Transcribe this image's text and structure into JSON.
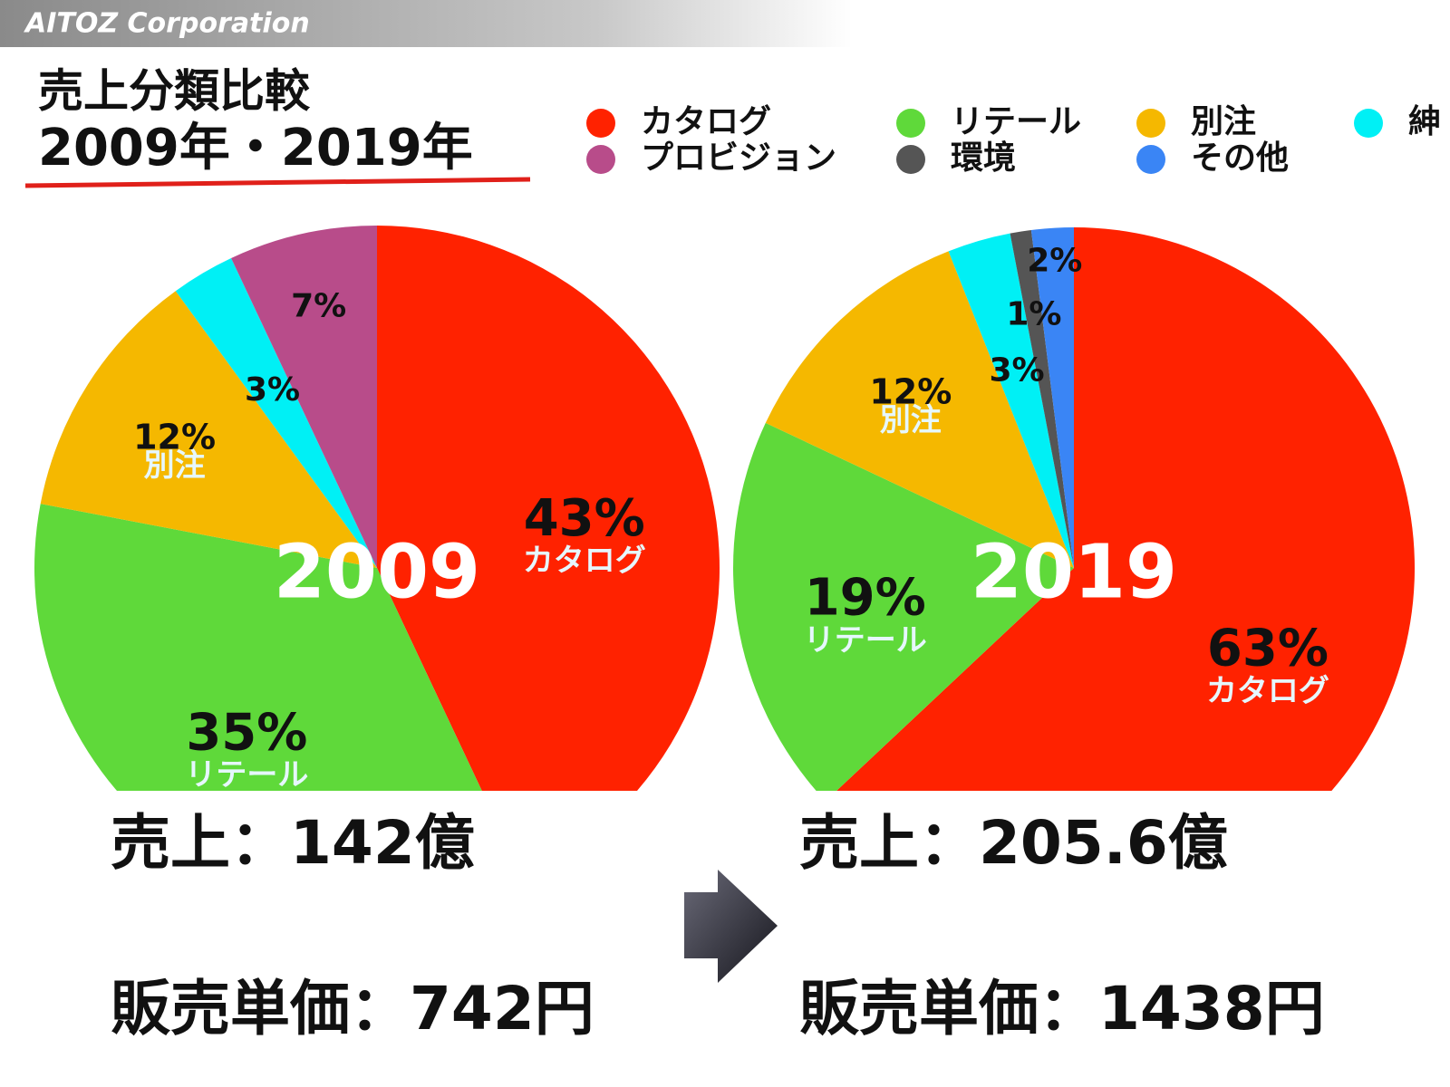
{
  "header": {
    "logo": "AITOZ Corporation"
  },
  "title": {
    "line1": "売上分類比較",
    "line2": "2009年・2019年"
  },
  "legend": [
    {
      "name": "カタログ",
      "color": "#ff2200"
    },
    {
      "name": "リテール",
      "color": "#5fd93a"
    },
    {
      "name": "別注",
      "color": "#f5b800"
    },
    {
      "name": "紳",
      "color": "#00f0f5"
    },
    {
      "name": "プロビジョン",
      "color": "#b84c8a"
    },
    {
      "name": "環境",
      "color": "#555555"
    },
    {
      "name": "その他",
      "color": "#3a85f5"
    }
  ],
  "chart_data": [
    {
      "type": "pie",
      "center_label": "2009",
      "values": [
        43,
        35,
        12,
        3,
        7
      ],
      "value_labels": [
        "43%",
        "35%",
        "12%",
        "3%",
        "7%"
      ],
      "slice_names": [
        "カタログ",
        "リテール",
        "別注",
        null,
        null
      ],
      "colors": [
        "#ff2200",
        "#5fd93a",
        "#f5b800",
        "#00f0f5",
        "#b84c8a"
      ]
    },
    {
      "type": "pie",
      "center_label": "2019",
      "values": [
        63,
        19,
        12,
        3,
        1,
        2
      ],
      "value_labels": [
        "63%",
        "19%",
        "12%",
        "3%",
        "1%",
        "2%"
      ],
      "slice_names": [
        "カタログ",
        "リテール",
        "別注",
        null,
        null,
        null
      ],
      "colors": [
        "#ff2200",
        "#5fd93a",
        "#f5b800",
        "#00f0f5",
        "#555555",
        "#3a85f5"
      ]
    }
  ],
  "summary": [
    {
      "sales": "売上：142億",
      "unit_price": "販売単価：742円"
    },
    {
      "sales": "売上：205.6億",
      "unit_price": "販売単価：1438円"
    }
  ]
}
